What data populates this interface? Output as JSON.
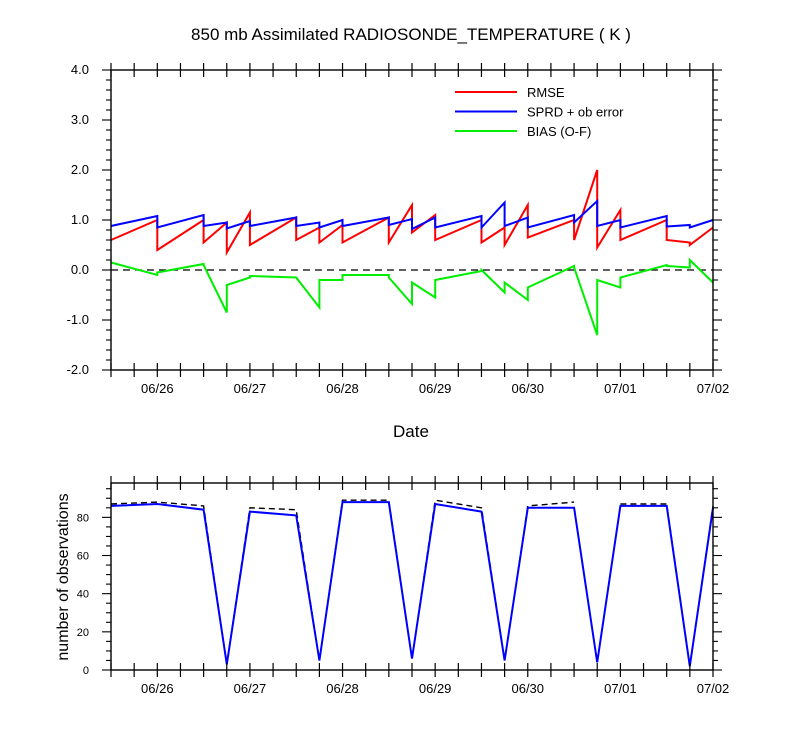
{
  "chart_data": [
    {
      "type": "line",
      "title": "850 mb Assimilated RADIOSONDE_TEMPERATURE ( K )",
      "xlabel": "Date",
      "ylabel": "",
      "ylim": [
        -2.0,
        4.0
      ],
      "yticks": [
        "-2.0",
        "-1.0",
        "0.0",
        "1.0",
        "2.0",
        "3.0",
        "4.0"
      ],
      "xlim": [
        0,
        13
      ],
      "xticks": [
        {
          "x": 1,
          "label": "06/26"
        },
        {
          "x": 3,
          "label": "06/27"
        },
        {
          "x": 5,
          "label": "06/28"
        },
        {
          "x": 7,
          "label": "06/29"
        },
        {
          "x": 9,
          "label": "06/30"
        },
        {
          "x": 11,
          "label": "07/01"
        },
        {
          "x": 13,
          "label": "07/02"
        }
      ],
      "legend_position": "top-right",
      "reference_line": {
        "y": 0,
        "style": "dashed"
      },
      "series": [
        {
          "name": "RMSE",
          "color": "#ff0000",
          "x": [
            0,
            1,
            1,
            2,
            2,
            2.5,
            2.5,
            3,
            3,
            4,
            4,
            4.5,
            4.5,
            5,
            5,
            6,
            6,
            6.5,
            6.5,
            7,
            7,
            8,
            8,
            8.5,
            8.5,
            9,
            9,
            10,
            10,
            10.5,
            10.5,
            11,
            11,
            12,
            12,
            12.5,
            12.5,
            13
          ],
          "y": [
            0.6,
            1.0,
            0.4,
            1.0,
            0.55,
            0.95,
            0.35,
            1.15,
            0.5,
            1.05,
            0.6,
            0.85,
            0.55,
            0.9,
            0.55,
            1.05,
            0.55,
            1.3,
            0.75,
            1.1,
            0.6,
            1.0,
            0.55,
            0.85,
            0.5,
            1.3,
            0.65,
            1.0,
            0.6,
            2.0,
            0.45,
            1.2,
            0.6,
            1.0,
            0.6,
            0.55,
            0.5,
            0.85
          ]
        },
        {
          "name": "SPRD + ob error",
          "color": "#0000ff",
          "x": [
            0,
            1,
            1,
            2,
            2,
            2.5,
            2.5,
            3,
            3,
            4,
            4,
            4.5,
            4.5,
            5,
            5,
            6,
            6,
            6.5,
            6.5,
            7,
            7,
            8,
            8,
            8.5,
            8.5,
            9,
            9,
            10,
            10,
            10.5,
            10.5,
            11,
            11,
            12,
            12,
            12.5,
            12.5,
            13
          ],
          "y": [
            0.88,
            1.08,
            0.85,
            1.1,
            0.88,
            0.95,
            0.83,
            0.98,
            0.88,
            1.05,
            0.88,
            0.95,
            0.85,
            1.0,
            0.88,
            1.05,
            0.9,
            1.02,
            0.82,
            1.05,
            0.85,
            1.08,
            0.85,
            1.35,
            0.88,
            1.05,
            0.85,
            1.1,
            0.95,
            1.38,
            0.88,
            1.0,
            0.85,
            1.08,
            0.87,
            0.9,
            0.85,
            1.0
          ]
        },
        {
          "name": "BIAS (O-F)",
          "color": "#00ee00",
          "x": [
            0,
            1,
            1,
            2,
            2,
            2.5,
            2.5,
            3,
            3,
            4,
            4,
            4.5,
            4.5,
            5,
            5,
            6,
            6,
            6.5,
            6.5,
            7,
            7,
            8,
            8,
            8.5,
            8.5,
            9,
            9,
            10,
            10,
            10.5,
            10.5,
            11,
            11,
            12,
            12,
            12.5,
            12.5,
            13
          ],
          "y": [
            0.15,
            -0.1,
            -0.05,
            0.12,
            0.1,
            -0.85,
            -0.3,
            -0.15,
            -0.12,
            -0.15,
            -0.15,
            -0.75,
            -0.2,
            -0.2,
            -0.1,
            -0.1,
            -0.15,
            -0.68,
            -0.25,
            -0.55,
            -0.2,
            -0.02,
            0.0,
            -0.45,
            -0.25,
            -0.6,
            -0.35,
            0.08,
            0.05,
            -1.3,
            -0.2,
            -0.35,
            -0.15,
            0.1,
            0.08,
            0.05,
            0.2,
            -0.25
          ]
        }
      ]
    },
    {
      "type": "line",
      "title": "",
      "xlabel": "",
      "ylabel": "number of observations",
      "ylim": [
        0,
        98
      ],
      "yticks": [
        "0",
        "20",
        "40",
        "60",
        "80"
      ],
      "xlim": [
        0,
        13
      ],
      "xticks": [
        {
          "x": 1,
          "label": "06/26"
        },
        {
          "x": 3,
          "label": "06/27"
        },
        {
          "x": 5,
          "label": "06/28"
        },
        {
          "x": 7,
          "label": "06/29"
        },
        {
          "x": 9,
          "label": "06/30"
        },
        {
          "x": 11,
          "label": "07/01"
        },
        {
          "x": 13,
          "label": "07/02"
        }
      ],
      "series": [
        {
          "color": "#000000",
          "style": "dashed",
          "x": [
            0,
            1,
            2,
            2.5,
            3,
            4,
            4.5,
            5,
            6,
            6.5,
            7,
            8,
            8.5,
            9,
            10,
            10.5,
            11,
            12,
            12.5,
            13
          ],
          "y": [
            87,
            88,
            86,
            3,
            85,
            84,
            5,
            89,
            89,
            6,
            89,
            85,
            5,
            86,
            88,
            null,
            87,
            87,
            2,
            86
          ]
        },
        {
          "color": "#0000ff",
          "style": "solid",
          "x": [
            0,
            1,
            2,
            2.5,
            3,
            4,
            4.5,
            5,
            6,
            6.5,
            7,
            8,
            8.5,
            9,
            10,
            10.5,
            11,
            12,
            12.5,
            13
          ],
          "y": [
            86,
            87,
            84,
            3,
            83,
            81,
            5,
            88,
            88,
            6,
            87,
            83,
            5,
            85,
            85,
            4,
            86,
            86,
            2,
            85
          ]
        }
      ]
    }
  ]
}
